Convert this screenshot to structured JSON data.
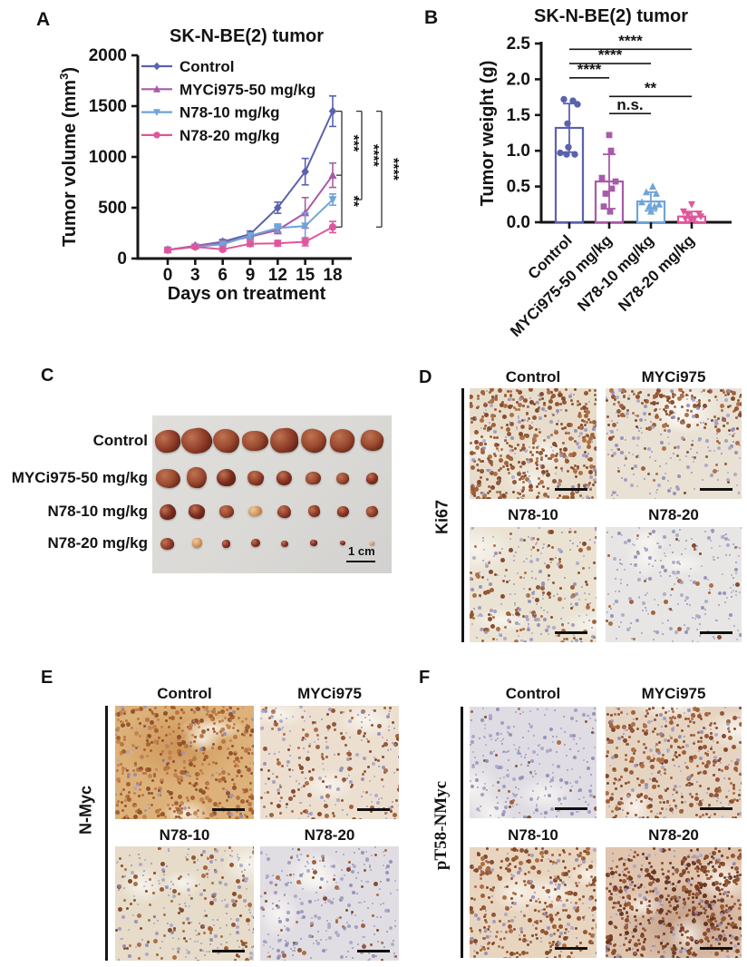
{
  "chart_data": [
    {
      "panel": "A",
      "type": "line",
      "title": "SK-N-BE(2) tumor",
      "xlabel": "Days on treatment",
      "ylabel": "Tumor volume (mm3)",
      "ylabel_parts": [
        "Tumor volume (mm",
        "3",
        ")"
      ],
      "x": [
        0,
        3,
        6,
        9,
        12,
        15,
        18
      ],
      "xlim": [
        0,
        18
      ],
      "ylim": [
        0,
        2000
      ],
      "yticks": [
        0,
        500,
        1000,
        1500,
        2000
      ],
      "legend_position": "top-left-inside",
      "series": [
        {
          "name": "Control",
          "color": "#5a62ae",
          "marker": "diamond",
          "values": [
            85,
            125,
            165,
            240,
            500,
            855,
            1450
          ],
          "errors": [
            12,
            15,
            22,
            30,
            55,
            130,
            150
          ]
        },
        {
          "name": "MYCi975-50 mg/kg",
          "color": "#a85ba8",
          "marker": "triangle-up",
          "values": [
            85,
            125,
            155,
            215,
            280,
            450,
            820
          ],
          "errors": [
            12,
            15,
            20,
            25,
            35,
            150,
            120
          ]
        },
        {
          "name": "N78-10 mg/kg",
          "color": "#6fa4d8",
          "marker": "triangle-down",
          "values": [
            85,
            115,
            140,
            225,
            300,
            320,
            580
          ],
          "errors": [
            12,
            14,
            18,
            25,
            40,
            130,
            55
          ]
        },
        {
          "name": "N78-20 mg/kg",
          "color": "#e0569b",
          "marker": "circle",
          "values": [
            85,
            115,
            90,
            145,
            150,
            165,
            310
          ],
          "errors": [
            12,
            14,
            15,
            25,
            28,
            40,
            55
          ]
        }
      ],
      "significance_brackets": [
        {
          "anchors": [
            "Control",
            "MYCi975-50 mg/kg",
            "N78-20 mg/kg"
          ],
          "labels": [
            {
              "text": "***",
              "between": [
                0,
                1
              ]
            },
            {
              "text": "**",
              "between": [
                1,
                2
              ]
            }
          ]
        },
        {
          "anchors": [
            "Control",
            "N78-10 mg/kg"
          ],
          "labels": [
            {
              "text": "****",
              "between": [
                0,
                1
              ]
            }
          ]
        },
        {
          "anchors": [
            "Control",
            "N78-20 mg/kg"
          ],
          "labels": [
            {
              "text": "****",
              "between": [
                0,
                1
              ]
            }
          ]
        }
      ]
    },
    {
      "panel": "B",
      "type": "bar-scatter",
      "title": "SK-N-BE(2) tumor",
      "ylabel": "Tumor weight (g)",
      "ylim": [
        0,
        2.5
      ],
      "ytick_labels": [
        "0.0",
        "0.5",
        "1.0",
        "1.5",
        "2.0",
        "2.5"
      ],
      "categories": [
        "Control",
        "MYCi975-50 mg/kg",
        "N78-10 mg/kg",
        "N78-20 mg/kg"
      ],
      "bars": [
        1.32,
        0.57,
        0.29,
        0.08
      ],
      "errors": [
        0.34,
        0.38,
        0.13,
        0.07
      ],
      "colors": [
        "#5a62ae",
        "#a85ba8",
        "#6fa4d8",
        "#e0569b"
      ],
      "markers": [
        "circle",
        "square",
        "triangle-up",
        "triangle-down"
      ],
      "points": [
        [
          1.72,
          1.7,
          1.65,
          1.38,
          1.05,
          0.97,
          0.95,
          0.95
        ],
        [
          1.22,
          1.0,
          0.62,
          0.57,
          0.47,
          0.4,
          0.22,
          0.15
        ],
        [
          0.5,
          0.42,
          0.4,
          0.28,
          0.25,
          0.22,
          0.22,
          0.15
        ],
        [
          0.25,
          0.15,
          0.12,
          0.1,
          0.08,
          0.05,
          0.05,
          0.03
        ]
      ],
      "jitter": [
        [
          -6,
          4,
          9,
          -2,
          -1,
          -10,
          -3,
          6
        ],
        [
          0,
          2,
          -8,
          7,
          3,
          -4,
          -6,
          1
        ],
        [
          2,
          -5,
          6,
          -10,
          9,
          -2,
          4,
          0
        ],
        [
          0,
          -9,
          8,
          -4,
          10,
          -7,
          3,
          -1
        ]
      ],
      "significance": [
        {
          "label": "****",
          "from": 0,
          "to": 1,
          "y": 2.02
        },
        {
          "label": "****",
          "from": 0,
          "to": 2,
          "y": 2.22
        },
        {
          "label": "****",
          "from": 0,
          "to": 3,
          "y": 2.42
        },
        {
          "label": "n.s.",
          "from": 1,
          "to": 2,
          "y": 1.52
        },
        {
          "label": "**",
          "from": 1,
          "to": 3,
          "y": 1.76
        }
      ]
    }
  ],
  "panelC": {
    "letter": "C",
    "rows": [
      {
        "label": "Control",
        "sizes": [
          31,
          32,
          31,
          27,
          30,
          27,
          27,
          25
        ],
        "light": []
      },
      {
        "label": "MYCi975-50 mg/kg",
        "sizes": [
          26,
          24,
          21,
          19,
          18,
          17,
          15,
          13
        ],
        "light": []
      },
      {
        "label": "N78-10 mg/kg",
        "sizes": [
          18,
          17,
          15,
          14,
          15,
          14,
          13,
          13
        ],
        "light": [
          3
        ]
      },
      {
        "label": "N78-20 mg/kg",
        "sizes": [
          14,
          12,
          10,
          10,
          8,
          8,
          6,
          5
        ],
        "light": [
          1,
          7
        ]
      }
    ],
    "scale_bar_label": "1 cm"
  },
  "panelD": {
    "letter": "D",
    "row_label": "Ki67",
    "tiles": [
      {
        "title": "Control",
        "brown": 0.8,
        "blue": 0.3,
        "base": "#e8ddcb"
      },
      {
        "title": "MYCi975",
        "brown": 0.35,
        "blue": 0.4,
        "base": "#e9e1d4",
        "brown_top": true
      },
      {
        "title": "N78-10",
        "brown": 0.22,
        "blue": 0.42,
        "base": "#eae3d3"
      },
      {
        "title": "N78-20",
        "brown": 0.05,
        "blue": 0.5,
        "base": "#e7e6e4"
      }
    ]
  },
  "panelE": {
    "letter": "E",
    "row_label": "N-Myc",
    "tiles": [
      {
        "title": "Control",
        "brown": 0.85,
        "blue": 0.15,
        "base": "#ddb27a",
        "strong": true
      },
      {
        "title": "MYCi975",
        "brown": 0.28,
        "blue": 0.35,
        "base": "#ecdfd0"
      },
      {
        "title": "N78-10",
        "brown": 0.22,
        "blue": 0.42,
        "base": "#e6dcc9"
      },
      {
        "title": "N78-20",
        "brown": 0.1,
        "blue": 0.55,
        "base": "#e1dee3"
      }
    ]
  },
  "panelF": {
    "letter": "F",
    "row_label": "pT58-NMyc",
    "tiles": [
      {
        "title": "Control",
        "brown": 0.04,
        "blue": 0.55,
        "base": "#dfdce3"
      },
      {
        "title": "MYCi975",
        "brown": 0.62,
        "blue": 0.3,
        "base": "#e6d4c2"
      },
      {
        "title": "N78-10",
        "brown": 0.58,
        "blue": 0.25,
        "base": "#e8d5bf"
      },
      {
        "title": "N78-20",
        "brown": 0.92,
        "blue": 0.35,
        "base": "#dfc4ae",
        "dark": true
      }
    ]
  }
}
